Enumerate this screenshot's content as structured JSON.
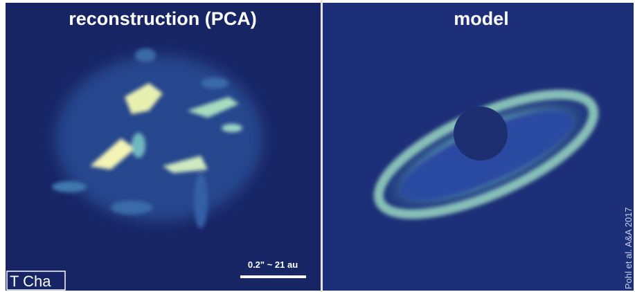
{
  "panels": [
    {
      "title": "reconstruction (PCA)",
      "scale_bar": "0.2\" ~ 21 au",
      "target": "T Cha"
    },
    {
      "title": "model",
      "credit": "Pohl et al. A&A 2017"
    }
  ]
}
